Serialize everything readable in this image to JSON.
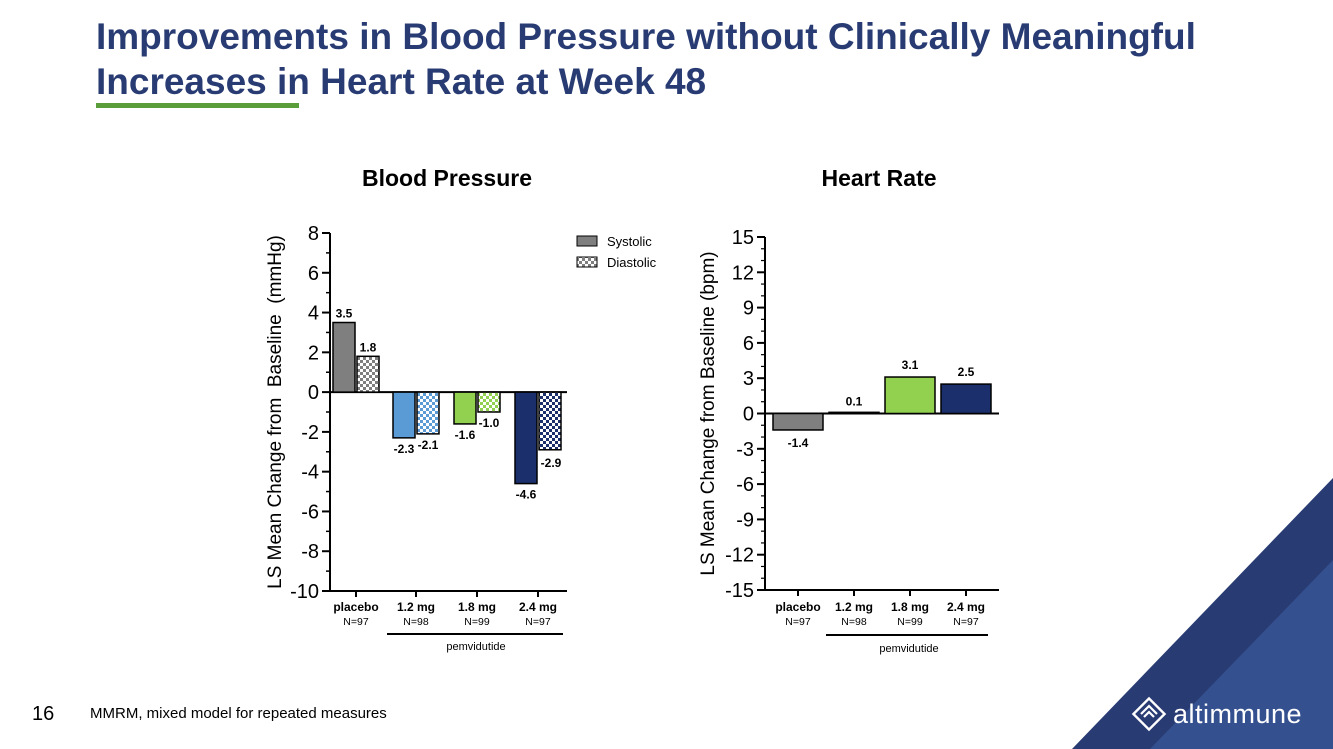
{
  "slide": {
    "title": "Improvements in Blood Pressure without Clinically Meaningful Increases in Heart Rate at Week 48",
    "page_number": "16",
    "footnote": "MMRM, mixed model for repeated measures",
    "brand": "altimmune",
    "colors": {
      "title": "#283b73",
      "underline": "#5a9e3c",
      "corner_dark": "#283b73",
      "corner_light": "#3d5a9e"
    }
  },
  "chart_data": [
    {
      "type": "bar",
      "title": "Blood Pressure",
      "ylabel": "LS Mean Change from  Baseline  (mmHg)",
      "ylim": [
        -10,
        8
      ],
      "yticks": [
        8,
        6,
        4,
        2,
        0,
        -2,
        -4,
        -6,
        -8,
        -10
      ],
      "categories": [
        {
          "label": "placebo",
          "n": "N=97"
        },
        {
          "label": "1.2 mg",
          "n": "N=98"
        },
        {
          "label": "1.8 mg",
          "n": "N=99"
        },
        {
          "label": "2.4 mg",
          "n": "N=97"
        }
      ],
      "group_label": "pemvidutide",
      "legend": [
        {
          "name": "Systolic",
          "pattern": "solid"
        },
        {
          "name": "Diastolic",
          "pattern": "checkered"
        }
      ],
      "series": [
        {
          "name": "Systolic",
          "values": [
            3.5,
            -2.3,
            -1.6,
            -4.6
          ],
          "labels": [
            "3.5",
            "-2.3",
            "-1.6",
            "-4.6"
          ]
        },
        {
          "name": "Diastolic",
          "values": [
            1.8,
            -2.1,
            -1.0,
            -2.9
          ],
          "labels": [
            "1.8",
            "-2.1",
            "-1.0",
            "-2.9"
          ]
        }
      ],
      "bar_colors": [
        "#7f7f7f",
        "#5b9bd5",
        "#92d050",
        "#1a2f6b"
      ]
    },
    {
      "type": "bar",
      "title": "Heart Rate",
      "ylabel": "LS Mean Change from Baseline (bpm)",
      "ylim": [
        -15,
        15
      ],
      "yticks": [
        15,
        12,
        9,
        6,
        3,
        0,
        -3,
        -6,
        -9,
        -12,
        -15
      ],
      "categories": [
        {
          "label": "placebo",
          "n": "N=97"
        },
        {
          "label": "1.2 mg",
          "n": "N=98"
        },
        {
          "label": "1.8 mg",
          "n": "N=99"
        },
        {
          "label": "2.4 mg",
          "n": "N=97"
        }
      ],
      "group_label": "pemvidutide",
      "values": [
        -1.4,
        0.1,
        3.1,
        2.5
      ],
      "labels": [
        "-1.4",
        "0.1",
        "3.1",
        "2.5"
      ],
      "bar_colors": [
        "#7f7f7f",
        "#5b9bd5",
        "#92d050",
        "#1a2f6b"
      ]
    }
  ]
}
